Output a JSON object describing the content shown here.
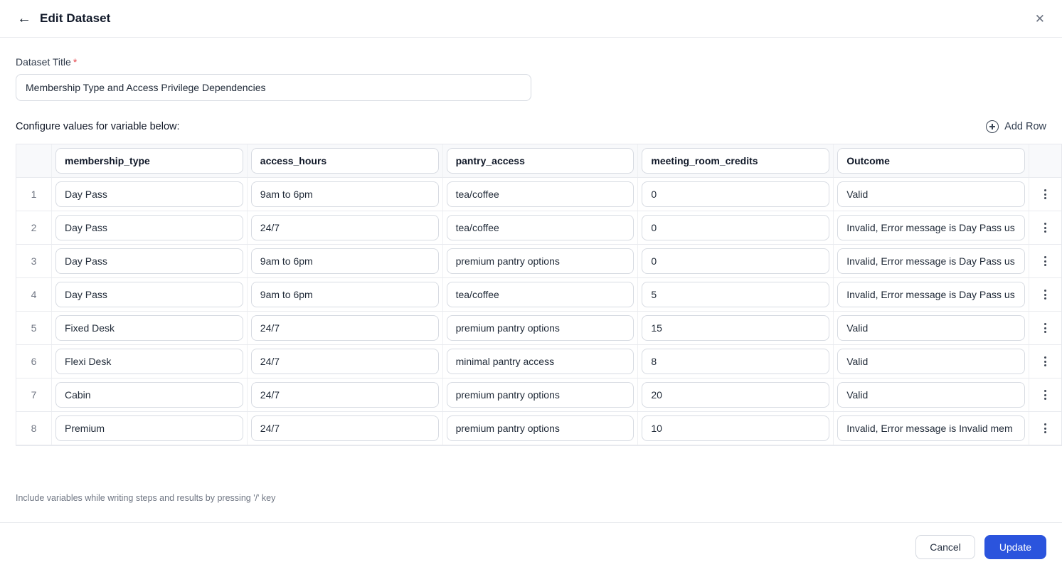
{
  "header": {
    "title": "Edit Dataset"
  },
  "form": {
    "dataset_title_label": "Dataset Title",
    "required_marker": "*",
    "dataset_title_value": "Membership Type and Access Privilege Dependencies"
  },
  "section": {
    "caption": "Configure values for variable below:",
    "add_row_label": "Add Row"
  },
  "table": {
    "columns": [
      "membership_type",
      "access_hours",
      "pantry_access",
      "meeting_room_credits",
      "Outcome"
    ],
    "rows": [
      {
        "num": "1",
        "cells": [
          "Day Pass",
          "9am to 6pm",
          "tea/coffee",
          "0",
          "Valid"
        ]
      },
      {
        "num": "2",
        "cells": [
          "Day Pass",
          "24/7",
          "tea/coffee",
          "0",
          "Invalid, Error message is Day Pass us"
        ]
      },
      {
        "num": "3",
        "cells": [
          "Day Pass",
          "9am to 6pm",
          "premium pantry options",
          "0",
          "Invalid, Error message is Day Pass us"
        ]
      },
      {
        "num": "4",
        "cells": [
          "Day Pass",
          "9am to 6pm",
          "tea/coffee",
          "5",
          "Invalid, Error message is Day Pass us"
        ]
      },
      {
        "num": "5",
        "cells": [
          "Fixed Desk",
          "24/7",
          "premium pantry options",
          "15",
          "Valid"
        ]
      },
      {
        "num": "6",
        "cells": [
          "Flexi Desk",
          "24/7",
          "minimal pantry access",
          "8",
          "Valid"
        ]
      },
      {
        "num": "7",
        "cells": [
          "Cabin",
          "24/7",
          "premium pantry options",
          "20",
          "Valid"
        ]
      },
      {
        "num": "8",
        "cells": [
          "Premium",
          "24/7",
          "premium pantry options",
          "10",
          "Invalid, Error message is Invalid mem"
        ]
      }
    ]
  },
  "footer": {
    "hint": "Include variables while writing steps and results by pressing '/' key",
    "cancel_label": "Cancel",
    "update_label": "Update"
  },
  "colors": {
    "accent": "#2b54dd",
    "required": "#e5484d"
  }
}
